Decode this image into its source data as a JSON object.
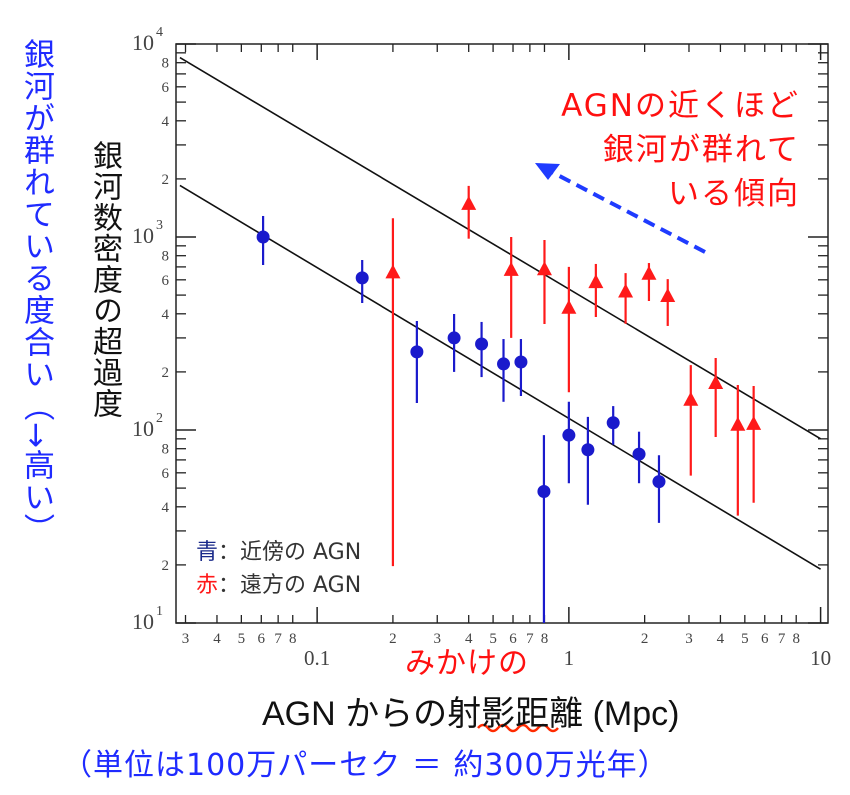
{
  "chart_data": {
    "type": "scatter",
    "xscale": "log",
    "yscale": "log",
    "xlim": [
      0.0275,
      10.7
    ],
    "ylim": [
      10,
      10000
    ],
    "xlabel": "AGN からの射影距離 (Mpc)",
    "ylabel": "銀河数密度の超過度",
    "x_major_ticks": [
      {
        "v": 0.1,
        "label": "0.1"
      },
      {
        "v": 1,
        "label": "1"
      },
      {
        "v": 10,
        "label": "10"
      }
    ],
    "x_minor_labels": [
      "3",
      "4",
      "5",
      "6",
      "7",
      "8",
      "2",
      "3",
      "4",
      "5",
      "6",
      "7",
      "8",
      "2",
      "3",
      "4",
      "5",
      "6",
      "7",
      "8"
    ],
    "x_minor_values": [
      0.03,
      0.04,
      0.05,
      0.06,
      0.07,
      0.08,
      0.2,
      0.3,
      0.4,
      0.5,
      0.6,
      0.7,
      0.8,
      2,
      3,
      4,
      5,
      6,
      7,
      8
    ],
    "y_major_ticks": [
      {
        "v": 10,
        "base": "10",
        "exp": "1"
      },
      {
        "v": 100,
        "base": "10",
        "exp": "2"
      },
      {
        "v": 1000,
        "base": "10",
        "exp": "3"
      },
      {
        "v": 10000,
        "base": "10",
        "exp": "4"
      }
    ],
    "y_minor_labels": [
      "2",
      "4",
      "6",
      "8",
      "2",
      "4",
      "6",
      "8",
      "2",
      "4",
      "6",
      "8"
    ],
    "y_minor_values": [
      20,
      40,
      60,
      80,
      200,
      400,
      600,
      800,
      2000,
      4000,
      6000,
      8000
    ],
    "series": [
      {
        "name": "近傍の AGN",
        "color": "#1a1acc",
        "marker": "circle",
        "x": [
          0.061,
          0.151,
          0.249,
          0.35,
          0.45,
          0.55,
          0.645,
          0.796,
          1.0,
          1.19,
          1.5,
          1.9,
          2.28
        ],
        "y": [
          1000,
          614,
          254,
          300,
          279,
          220,
          225,
          48,
          94,
          79,
          109,
          75,
          54
        ],
        "y_low": [
          716,
          455,
          138,
          200,
          188,
          140,
          150,
          10,
          53,
          41,
          84,
          53,
          33
        ],
        "y_high": [
          1285,
          760,
          367,
          399,
          363,
          296,
          296,
          94,
          140,
          117,
          133,
          98,
          74
        ]
      },
      {
        "name": "遠方の AGN",
        "color": "#ff1a1a",
        "marker": "triangle",
        "x": [
          0.2,
          0.4,
          0.59,
          0.8,
          1.0,
          1.28,
          1.68,
          2.08,
          2.47,
          3.05,
          3.83,
          4.69,
          5.42
        ],
        "y": [
          640,
          1450,
          660,
          665,
          420,
          570,
          510,
          630,
          483,
          140,
          171,
          104,
          105
        ],
        "y_low": [
          19.7,
          980,
          300,
          354,
          157,
          385,
          355,
          466,
          346,
          58,
          92,
          36,
          42
        ],
        "y_high": [
          1250,
          1840,
          1000,
          965,
          700,
          725,
          650,
          733,
          605,
          217,
          236,
          171,
          169
        ]
      }
    ],
    "fit_lines": [
      {
        "name": "upper-fit",
        "x": [
          0.0285,
          10
        ],
        "y": [
          8500,
          90
        ]
      },
      {
        "name": "lower-fit",
        "x": [
          0.0285,
          10
        ],
        "y": [
          1850,
          19
        ]
      }
    ],
    "legend": {
      "placement": "bottom-left",
      "items": [
        {
          "key": "青",
          "text": "：近傍の AGN",
          "color": "#1a2a8a"
        },
        {
          "key": "赤",
          "text": "：遠方の AGN",
          "color": "#ff1a1a"
        }
      ]
    },
    "annotations": {
      "trend_lines": [
        "AGNの近くほど",
        "銀河が群れて",
        "いる傾向"
      ],
      "y_annotation": "銀河が群れている度合い（→高い）",
      "x_annotation": "みかけの",
      "unit_note": "（単位は100万パーセク ＝ 約300万光年）"
    }
  }
}
